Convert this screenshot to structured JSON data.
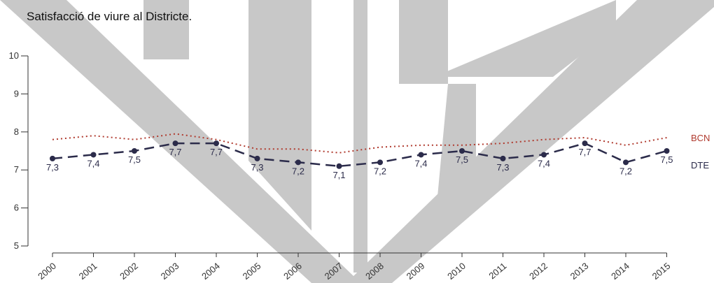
{
  "chart_data": {
    "type": "line",
    "title": "Satisfacció de viure al Districte.",
    "xlabel": "",
    "ylabel": "",
    "categories": [
      "2000",
      "2001",
      "2002",
      "2003",
      "2004",
      "2005",
      "2006",
      "2007",
      "2008",
      "2009",
      "2010",
      "2011",
      "2012",
      "2013",
      "2014",
      "2015"
    ],
    "ylim": [
      5,
      10
    ],
    "yticks": [
      5,
      6,
      7,
      8,
      9,
      10
    ],
    "grid": false,
    "series": [
      {
        "name": "BCN",
        "color": "#b03a2e",
        "style": "dotted",
        "markers": false,
        "values": [
          7.8,
          7.9,
          7.8,
          7.95,
          7.8,
          7.55,
          7.55,
          7.45,
          7.6,
          7.65,
          7.65,
          7.7,
          7.8,
          7.85,
          7.65,
          7.85
        ]
      },
      {
        "name": "DTE",
        "color": "#2b2b4a",
        "style": "dashed",
        "markers": true,
        "values": [
          7.3,
          7.4,
          7.5,
          7.7,
          7.7,
          7.3,
          7.2,
          7.1,
          7.2,
          7.4,
          7.5,
          7.3,
          7.4,
          7.7,
          7.2,
          7.5
        ],
        "labels": [
          "7,3",
          "7,4",
          "7,5",
          "7,7",
          "7,7",
          "7,3",
          "7,2",
          "7,1",
          "7,2",
          "7,4",
          "7,5",
          "7,3",
          "7,4",
          "7,7",
          "7,2",
          "7,5"
        ]
      }
    ]
  },
  "watermark": {
    "color": "#c8c8c8",
    "logo": "shield-watermark"
  }
}
